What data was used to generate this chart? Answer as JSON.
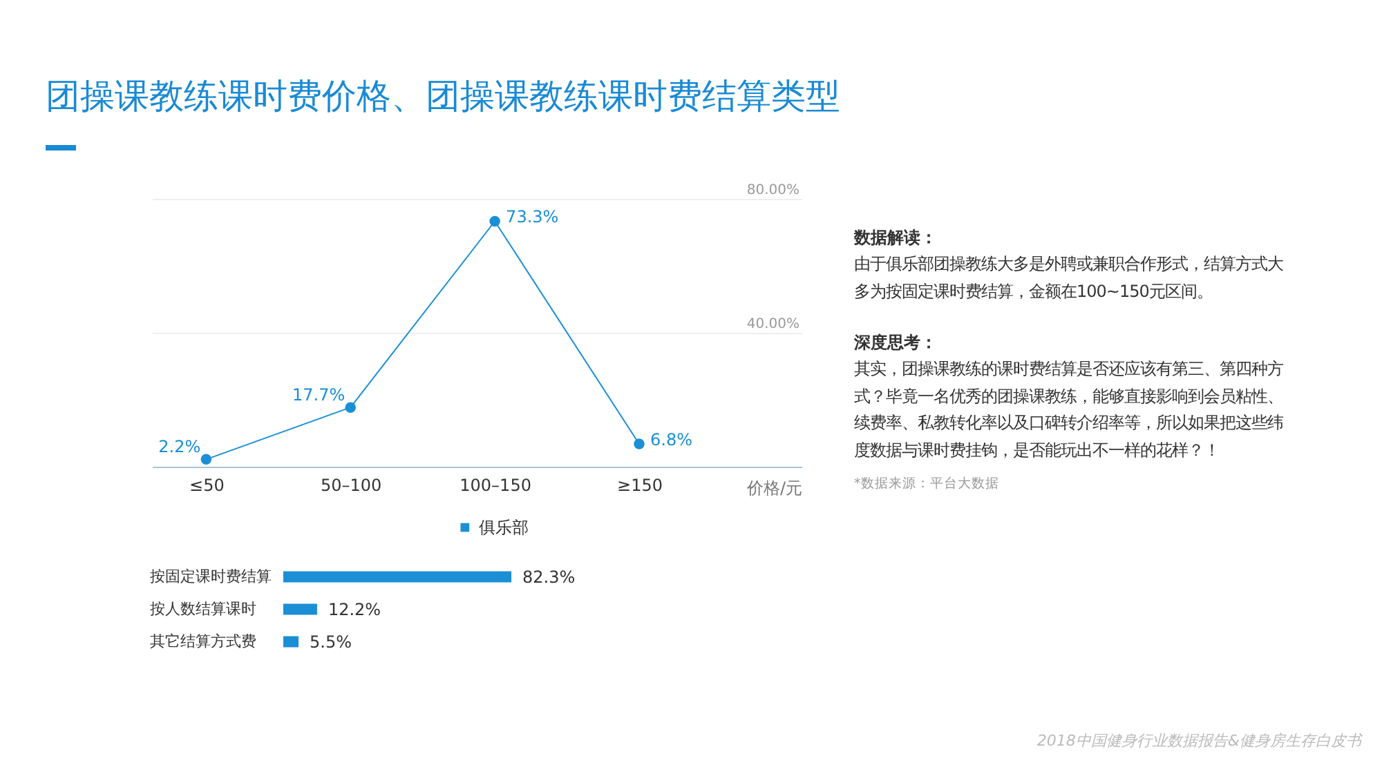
{
  "chart_data": [
    {
      "type": "line",
      "title": "团操课教练课时费价格、团操课教练课时费结算类型",
      "xlabel": "价格/元",
      "categories": [
        "≤50",
        "50–100",
        "100–150",
        "≥150"
      ],
      "series": [
        {
          "color": "#1a8fd6",
          "values": [
            2.2,
            17.7,
            73.3,
            6.8
          ],
          "value_labels": [
            "2.2%",
            "17.7%",
            "73.3%",
            "6.8%"
          ]
        }
      ],
      "ylim": [
        0,
        80
      ],
      "yticks": [
        {
          "value": 40,
          "label": "40.00%"
        },
        {
          "value": 80,
          "label": "80.00%"
        }
      ],
      "grid": "y",
      "marker": "circle",
      "annotations": [
        "2018中国健身行业数据报告&健身房生存白皮书"
      ]
    },
    {
      "type": "bar",
      "orientation": "horizontal",
      "categories": [
        "按固定课时费结算",
        "按人数结算课时",
        "其它结算方式费"
      ],
      "series": [
        {
          "name": "俱乐部",
          "color": "#1a8fd6",
          "values": [
            82.3,
            12.2,
            5.5
          ],
          "value_labels": [
            "82.3%",
            "12.2%",
            "5.5%"
          ]
        }
      ],
      "legend": "top"
    },
    {
      "type": "other",
      "title": "数据解读：",
      "annotations": [
        "由于俱乐部团操教练大多是外聘或兼职合作形式，结算方式大多为按固定课时费结算，金额在100~150元区间。"
      ]
    },
    {
      "type": "other",
      "title": "深度思考：",
      "annotations": [
        "其实，团操课教练的课时费结算是否还应该有第三、第四种方式？毕竟一名优秀的团操课教练，能够直接影响到会员粘性、续费率、私教转化率以及口碑转介绍率等，所以如果把这些纬度数据与课时费挂钩，是否能玩出不一样的花样？！",
        "*数据来源：平台大数据"
      ]
    }
  ]
}
